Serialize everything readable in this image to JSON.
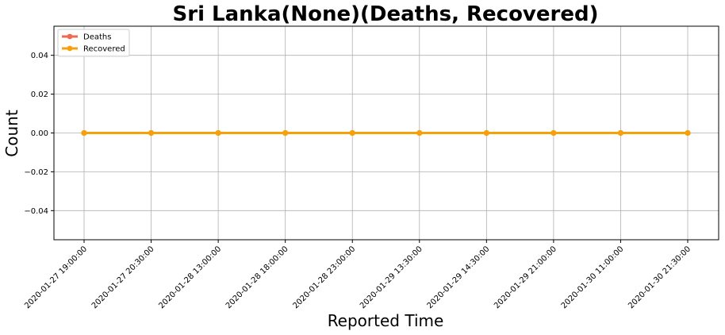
{
  "chart_data": {
    "type": "line",
    "title": "Sri Lanka(None)(Deaths, Recovered)",
    "xlabel": "Reported Time",
    "ylabel": "Count",
    "categories": [
      "2020-01-27 19:00:00",
      "2020-01-27 20:30:00",
      "2020-01-28 13:00:00",
      "2020-01-28 18:00:00",
      "2020-01-28 23:00:00",
      "2020-01-29 13:30:00",
      "2020-01-29 14:30:00",
      "2020-01-29 21:00:00",
      "2020-01-30 11:00:00",
      "2020-01-30 21:30:00"
    ],
    "ylim": [
      -0.055,
      0.055
    ],
    "yticks": [
      -0.04,
      -0.02,
      0.0,
      0.02,
      0.04
    ],
    "ytick_labels": [
      "−0.04",
      "−0.02",
      "0.00",
      "0.02",
      "0.04"
    ],
    "grid": true,
    "legend_position": "top-left",
    "series": [
      {
        "name": "Deaths",
        "color": "#ee6a50",
        "values": [
          0,
          0,
          0,
          0,
          0,
          0,
          0,
          0,
          0,
          0
        ]
      },
      {
        "name": "Recovered",
        "color": "#f5a20a",
        "values": [
          0,
          0,
          0,
          0,
          0,
          0,
          0,
          0,
          0,
          0
        ]
      }
    ]
  }
}
